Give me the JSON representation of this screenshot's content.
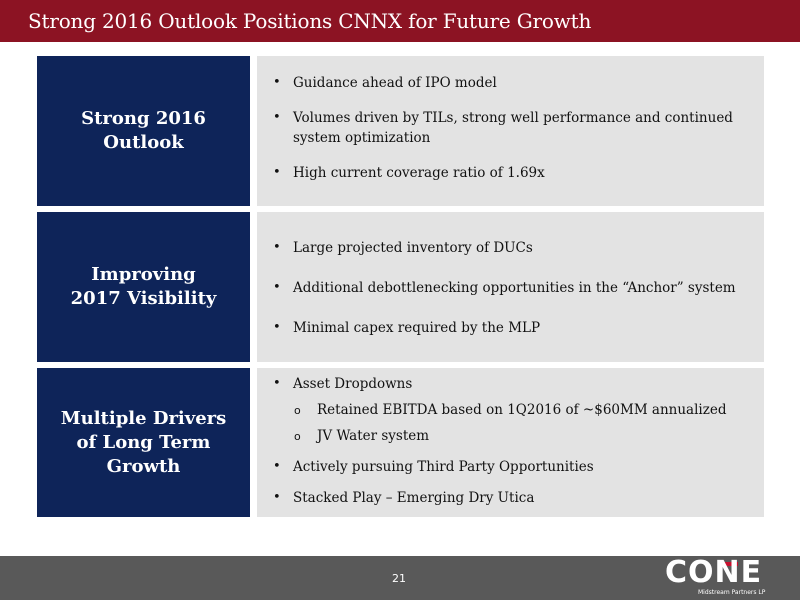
{
  "header": {
    "title": "Strong 2016 Outlook Positions CNNX for Future Growth"
  },
  "sections": [
    {
      "label": "Strong 2016\nOutlook",
      "bullets": [
        "Guidance ahead of IPO model",
        "Volumes driven by TILs, strong well performance and continued system optimization",
        "High current coverage ratio of 1.69x"
      ]
    },
    {
      "label": "Improving\n2017 Visibility",
      "bullets": [
        "Large projected inventory of DUCs",
        "Additional debottlenecking opportunities in the “Anchor” system",
        "Minimal capex required by the MLP"
      ]
    },
    {
      "label": "Multiple Drivers\nof Long Term\nGrowth",
      "bullets": [
        "Asset Dropdowns",
        "Actively pursuing Third Party Opportunities",
        "Stacked Play – Emerging Dry Utica"
      ],
      "sub_bullets": [
        "Retained EBITDA based on 1Q2016 of ~$60MM annualized",
        "JV Water system"
      ],
      "sub_marker": "o"
    }
  ],
  "footer": {
    "page_number": "21",
    "logo_text": "CONE",
    "logo_subtext": "Midstream Partners LP"
  },
  "colors": {
    "title_bar": "#8c1323",
    "label_box": "#0e2459",
    "content_box": "#e3e3e3",
    "footer": "#595959",
    "logo_accent": "#c8102e"
  }
}
